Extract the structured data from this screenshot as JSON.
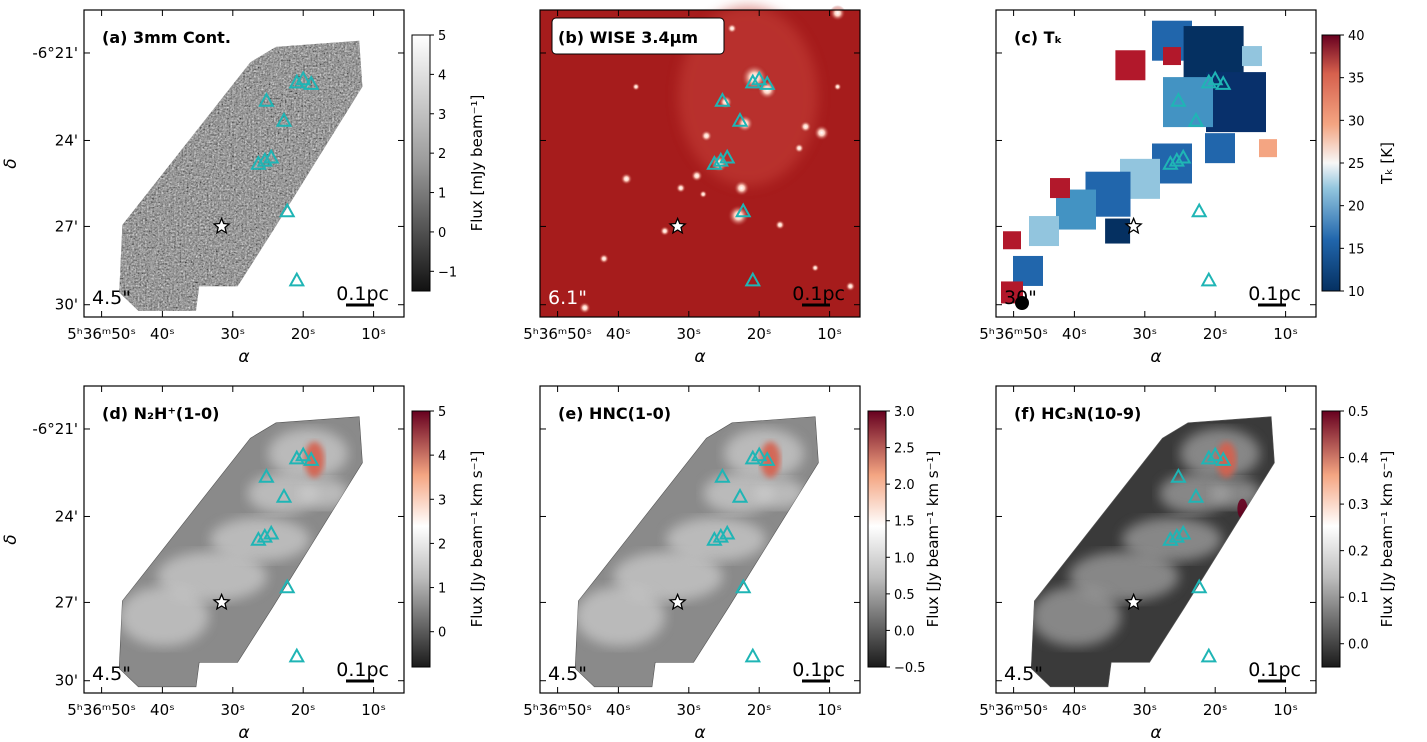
{
  "panels": [
    {
      "id": "a",
      "title": "(a) 3mm Cont.",
      "boxed": false,
      "colormap": "gray",
      "colorbar": {
        "label": "Flux [mJy beam⁻¹]",
        "ticks": [
          "−1",
          "0",
          "1",
          "2",
          "3",
          "4",
          "5"
        ],
        "min": -1.5,
        "max": 5
      }
    },
    {
      "id": "b",
      "title": "(b) WISE 3.4μm",
      "boxed": true,
      "colormap": "red"
    },
    {
      "id": "c",
      "title": "(c) Tₖ",
      "boxed": false,
      "colormap": "rdbu",
      "colorbar": {
        "label": "Tₖ [K]",
        "ticks": [
          "10",
          "15",
          "20",
          "25",
          "30",
          "35",
          "40"
        ],
        "min": 10,
        "max": 40
      }
    },
    {
      "id": "d",
      "title": "(d) N₂H⁺(1-0)",
      "boxed": false,
      "colormap": "gray",
      "colorbar": {
        "label": "Flux [Jy beam⁻¹ km s⁻¹]",
        "ticks": [
          "0",
          "1",
          "2",
          "3",
          "4",
          "5"
        ],
        "min": -0.8,
        "max": 5
      }
    },
    {
      "id": "e",
      "title": "(e) HNC(1-0)",
      "boxed": false,
      "colormap": "gray",
      "colorbar": {
        "label": "Flux [Jy beam⁻¹ km s⁻¹]",
        "ticks": [
          "−0.5",
          "0.0",
          "0.5",
          "1.0",
          "1.5",
          "2.0",
          "2.5",
          "3.0"
        ],
        "min": -0.5,
        "max": 3
      }
    },
    {
      "id": "f",
      "title": "(f) HC₃N(10-9)",
      "boxed": false,
      "colormap": "gray",
      "colorbar": {
        "label": "Flux [Jy beam⁻¹ km s⁻¹]",
        "ticks": [
          "0.0",
          "0.1",
          "0.2",
          "0.3",
          "0.4",
          "0.5"
        ],
        "min": -0.05,
        "max": 0.5
      }
    }
  ],
  "axes": {
    "xlabel": "α",
    "ylabel": "δ",
    "ra_ticks": [
      {
        "label": "5ʰ36ᵐ50ˢ"
      },
      {
        "label": "40ˢ"
      },
      {
        "label": "30ˢ"
      },
      {
        "label": "20ˢ"
      },
      {
        "label": "10ˢ"
      }
    ],
    "dec_ticks": [
      "-6°21'",
      "24'",
      "27'",
      "30'"
    ]
  },
  "beams": {
    "a": "4.5\"",
    "b": "6.1\"",
    "c": "30\"",
    "d": "4.5\"",
    "e": "4.5\"",
    "f": "4.5\""
  },
  "scalebar_label": "0.1pc",
  "markers": {
    "triangle_color": "#1fb5b5",
    "star_label": "star",
    "triangle_label": "triangle"
  }
}
